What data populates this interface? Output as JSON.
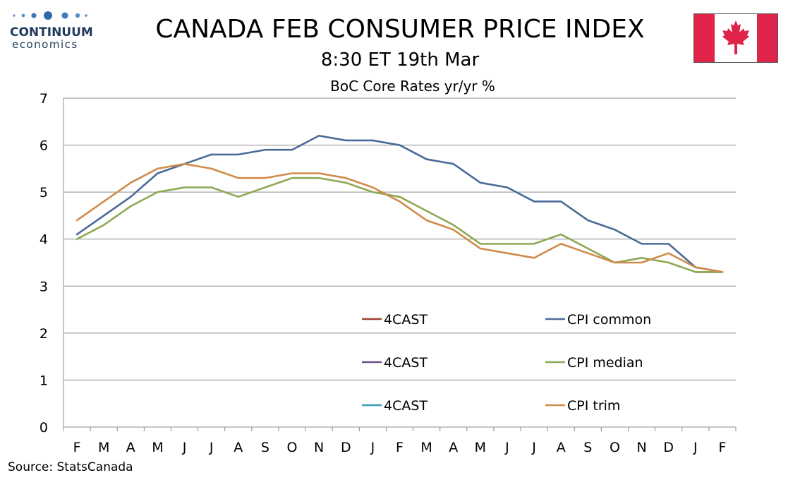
{
  "header": {
    "logo_name": "CONTINUUM",
    "logo_sub": "economics",
    "title": "CANADA FEB CONSUMER PRICE INDEX",
    "subtitle": "8:30 ET 19th Mar",
    "flag_icon": "canada-flag-icon"
  },
  "footer": {
    "source": "Source: StatsCanada"
  },
  "colors": {
    "grid": "#8c8c8c",
    "cpi_common": "#4a6a9a",
    "cpi_median": "#8ea852",
    "cpi_trim": "#d08a4a",
    "forecast_1": "#a04030",
    "forecast_2": "#6a4f8a",
    "forecast_3": "#3d9db3",
    "flag_red": "#e0234b",
    "logo_blue": "#1f3a5a"
  },
  "chart_data": {
    "type": "line",
    "title": "BoC Core Rates yr/yr %",
    "xlabel": "",
    "ylabel": "",
    "ylim": [
      0,
      7
    ],
    "yticks": [
      0,
      1,
      2,
      3,
      4,
      5,
      6,
      7
    ],
    "grid": true,
    "legend_position": "bottom-right",
    "categories": [
      "F",
      "M",
      "A",
      "M",
      "J",
      "J",
      "A",
      "S",
      "O",
      "N",
      "D",
      "J",
      "F",
      "M",
      "A",
      "M",
      "J",
      "J",
      "A",
      "S",
      "O",
      "N",
      "D",
      "J",
      "F"
    ],
    "series": [
      {
        "name": "CPI common",
        "color": "#4a6a9a",
        "values": [
          4.1,
          4.5,
          4.9,
          5.4,
          5.6,
          5.8,
          5.8,
          5.9,
          5.9,
          6.2,
          6.1,
          6.1,
          6.0,
          5.7,
          5.6,
          5.2,
          5.1,
          4.8,
          4.8,
          4.4,
          4.2,
          3.9,
          3.9,
          3.4,
          3.3
        ]
      },
      {
        "name": "CPI median",
        "color": "#8ea852",
        "values": [
          4.0,
          4.3,
          4.7,
          5.0,
          5.1,
          5.1,
          4.9,
          5.1,
          5.3,
          5.3,
          5.2,
          5.0,
          4.9,
          4.6,
          4.3,
          3.9,
          3.9,
          3.9,
          4.1,
          3.8,
          3.5,
          3.6,
          3.5,
          3.3,
          3.3
        ]
      },
      {
        "name": "CPI trim",
        "color": "#d08a4a",
        "values": [
          4.4,
          4.8,
          5.2,
          5.5,
          5.6,
          5.5,
          5.3,
          5.3,
          5.4,
          5.4,
          5.3,
          5.1,
          4.8,
          4.4,
          4.2,
          3.8,
          3.7,
          3.6,
          3.9,
          3.7,
          3.5,
          3.5,
          3.7,
          3.4,
          3.3
        ]
      },
      {
        "name": "4CAST",
        "color": "#a04030",
        "values": [
          null,
          null,
          null,
          null,
          null,
          null,
          null,
          null,
          null,
          null,
          null,
          null,
          null,
          null,
          null,
          null,
          null,
          null,
          null,
          null,
          null,
          null,
          null,
          3.3,
          3.3
        ]
      },
      {
        "name": "4CAST",
        "color": "#6a4f8a",
        "values": [
          null,
          null,
          null,
          null,
          null,
          null,
          null,
          null,
          null,
          null,
          null,
          null,
          null,
          null,
          null,
          null,
          null,
          null,
          null,
          null,
          null,
          null,
          null,
          3.3,
          3.3
        ]
      },
      {
        "name": "4CAST",
        "color": "#3d9db3",
        "values": [
          null,
          null,
          null,
          null,
          null,
          null,
          null,
          null,
          null,
          null,
          null,
          null,
          null,
          null,
          null,
          null,
          null,
          null,
          null,
          null,
          null,
          null,
          null,
          3.3,
          3.3
        ]
      }
    ],
    "legend": [
      {
        "label": "4CAST",
        "color": "#a04030"
      },
      {
        "label": "CPI common",
        "color": "#4a6a9a"
      },
      {
        "label": "4CAST",
        "color": "#6a4f8a"
      },
      {
        "label": "CPI median",
        "color": "#8ea852"
      },
      {
        "label": "4CAST",
        "color": "#3d9db3"
      },
      {
        "label": "CPI trim",
        "color": "#d08a4a"
      }
    ]
  }
}
